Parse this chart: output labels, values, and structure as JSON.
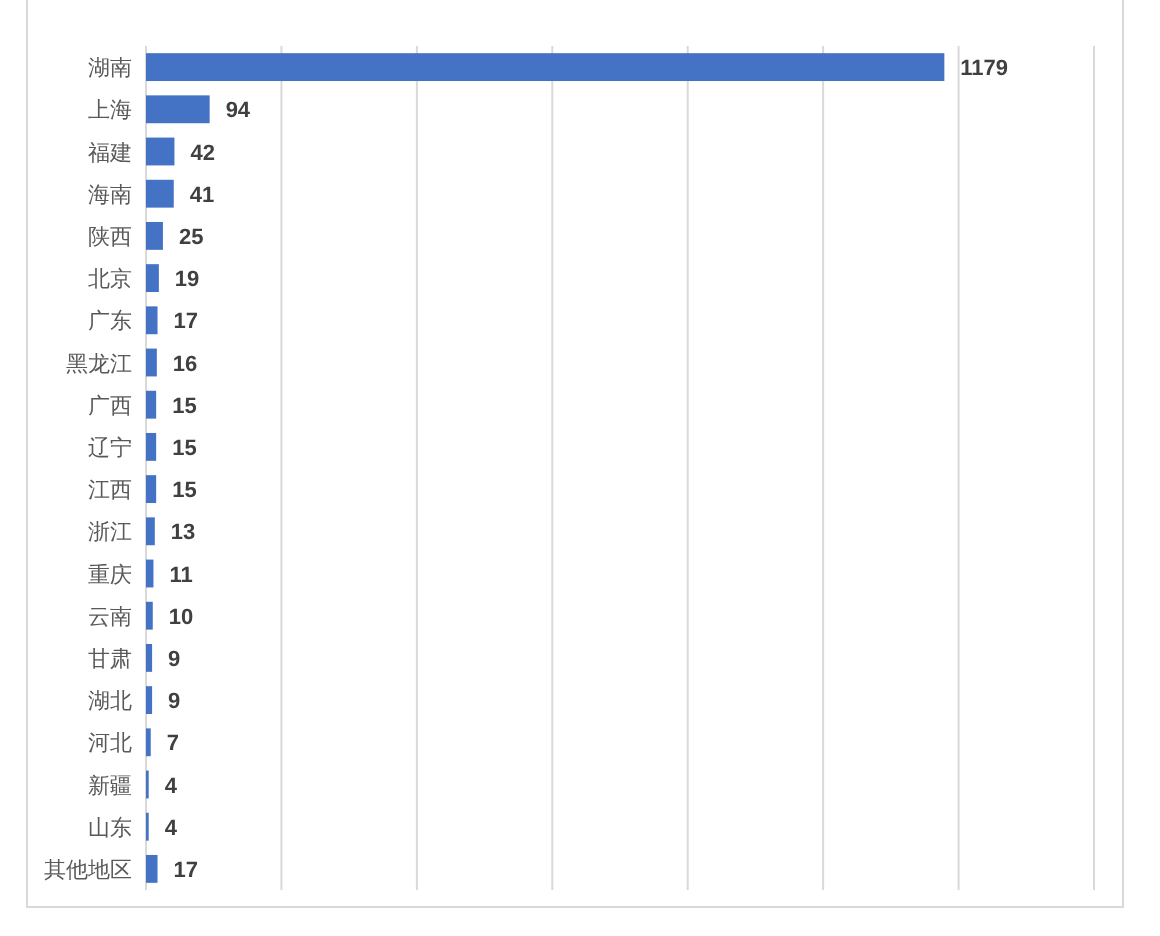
{
  "chart_data": {
    "type": "bar",
    "orientation": "horizontal",
    "categories": [
      "湖南",
      "上海",
      "福建",
      "海南",
      "陕西",
      "北京",
      "广东",
      "黑龙江",
      "广西",
      "辽宁",
      "江西",
      "浙江",
      "重庆",
      "云南",
      "甘肃",
      "湖北",
      "河北",
      "新疆",
      "山东",
      "其他地区"
    ],
    "values": [
      1179,
      94,
      42,
      41,
      25,
      19,
      17,
      16,
      15,
      15,
      15,
      13,
      11,
      10,
      9,
      9,
      7,
      4,
      4,
      17
    ],
    "color": "#4472c4",
    "xlim": [
      0,
      1400
    ],
    "xticks": [
      0,
      200,
      400,
      600,
      800,
      1000,
      1200,
      1400
    ],
    "tick_labels": "y",
    "grid": "x",
    "data_labels": true
  }
}
